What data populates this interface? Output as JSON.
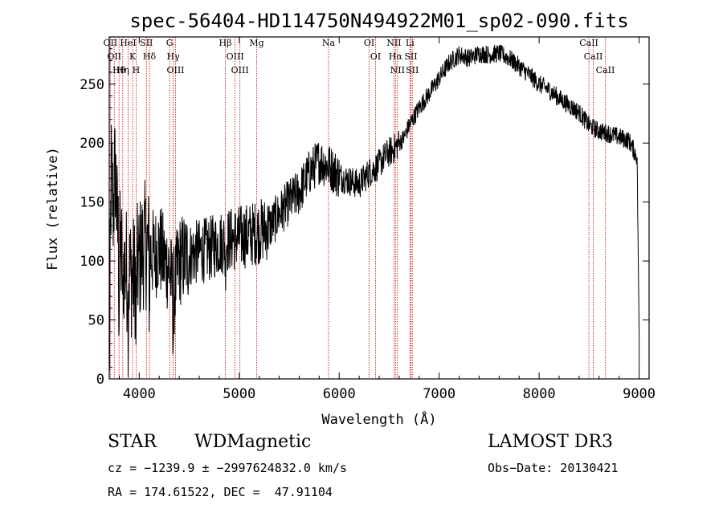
{
  "chart_data": {
    "type": "line",
    "title": "spec-56404-HD114750N494922M01_sp02-090.fits",
    "xlabel": "Wavelength (Å)",
    "ylabel": "Flux (relative)",
    "xlim": [
      3700,
      9100
    ],
    "ylim": [
      0,
      290
    ],
    "xticks": [
      4000,
      5000,
      6000,
      7000,
      8000,
      9000
    ],
    "yticks": [
      0,
      50,
      100,
      150,
      200,
      250
    ],
    "series": [
      {
        "name": "flux",
        "x": [
          3700,
          3720,
          3740,
          3760,
          3780,
          3800,
          3850,
          3900,
          3950,
          4000,
          4050,
          4100,
          4150,
          4200,
          4250,
          4300,
          4340,
          4400,
          4500,
          4600,
          4700,
          4800,
          4900,
          5000,
          5100,
          5200,
          5300,
          5400,
          5500,
          5600,
          5700,
          5800,
          5900,
          6000,
          6100,
          6200,
          6300,
          6350,
          6400,
          6450,
          6500,
          6550,
          6600,
          6650,
          6700,
          6800,
          6900,
          7000,
          7100,
          7200,
          7300,
          7400,
          7500,
          7600,
          7700,
          7800,
          7900,
          8000,
          8100,
          8200,
          8300,
          8400,
          8500,
          8600,
          8700,
          8800,
          8900,
          8980,
          9000
        ],
        "y": [
          5,
          175,
          145,
          180,
          130,
          110,
          95,
          90,
          85,
          100,
          115,
          108,
          105,
          112,
          100,
          95,
          70,
          100,
          105,
          108,
          110,
          115,
          118,
          120,
          122,
          125,
          128,
          140,
          150,
          158,
          175,
          185,
          180,
          172,
          168,
          165,
          175,
          178,
          182,
          188,
          192,
          195,
          200,
          205,
          215,
          230,
          242,
          255,
          268,
          275,
          272,
          276,
          275,
          276,
          272,
          265,
          258,
          250,
          245,
          238,
          232,
          226,
          215,
          210,
          208,
          205,
          202,
          188,
          38
        ]
      }
    ],
    "lines_top": [
      {
        "wl": 3711,
        "label": "OII"
      },
      {
        "wl": 3750,
        "label": "OII"
      },
      {
        "wl": 3798,
        "label": "Hθ"
      },
      {
        "wl": 3835,
        "label": "Hη"
      },
      {
        "wl": 3889,
        "label": "HeI"
      },
      {
        "wl": 3934,
        "label": "K"
      },
      {
        "wl": 3969,
        "label": "H"
      },
      {
        "wl": 4072,
        "label": "SII"
      },
      {
        "wl": 4102,
        "label": "Hδ"
      },
      {
        "wl": 4304,
        "label": "G"
      },
      {
        "wl": 4340,
        "label": "Hγ"
      },
      {
        "wl": 4363,
        "label": "OIII"
      },
      {
        "wl": 4861,
        "label": "Hβ"
      },
      {
        "wl": 4959,
        "label": "OIII"
      },
      {
        "wl": 5007,
        "label": "OIII"
      },
      {
        "wl": 5175,
        "label": "Mg"
      },
      {
        "wl": 5893,
        "label": "Na"
      },
      {
        "wl": 6300,
        "label": "OI"
      },
      {
        "wl": 6364,
        "label": "OI"
      },
      {
        "wl": 6548,
        "label": "NII"
      },
      {
        "wl": 6563,
        "label": "Hα"
      },
      {
        "wl": 6583,
        "label": "NII"
      },
      {
        "wl": 6708,
        "label": "Li"
      },
      {
        "wl": 6717,
        "label": "SII"
      },
      {
        "wl": 6731,
        "label": "SII"
      },
      {
        "wl": 8498,
        "label": "CaII"
      },
      {
        "wl": 8542,
        "label": "CaII"
      },
      {
        "wl": 8662,
        "label": "CaII"
      }
    ],
    "line_color": "#cc0000"
  },
  "info": {
    "class": "STAR",
    "subclass": "WDMagnetic",
    "survey": "LAMOST DR3",
    "cz": "cz = −1239.9 ± −2997624832.0 km/s",
    "obs_date": "Obs−Date: 20130421",
    "radec": "RA = 174.61522, DEC =  47.91104"
  }
}
